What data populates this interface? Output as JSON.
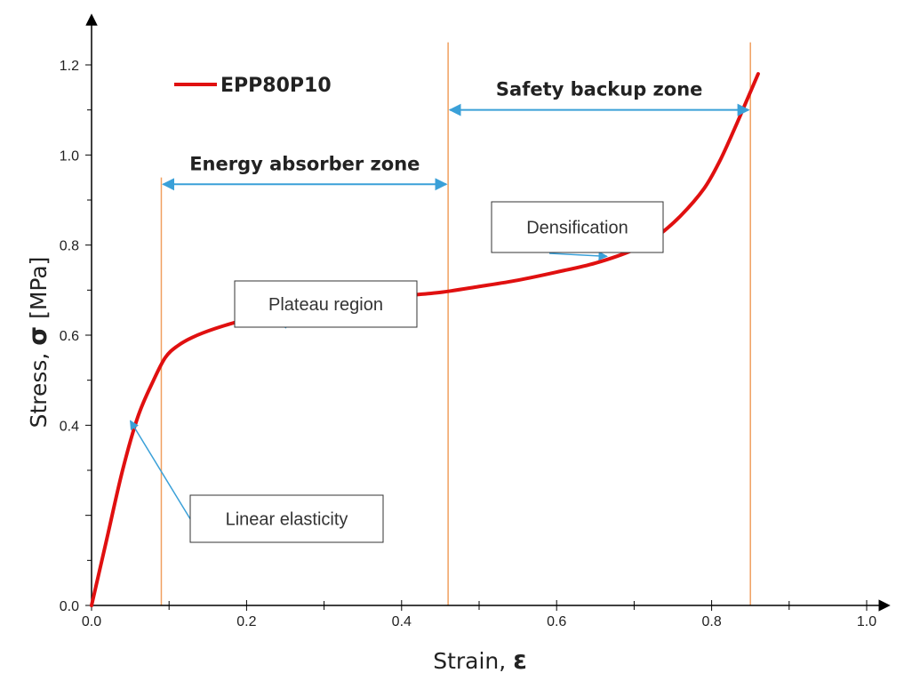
{
  "chart_data": {
    "type": "line",
    "title": "",
    "xlabel": "Strain,",
    "xlabel_symbol": "ε",
    "ylabel": "Stress,",
    "ylabel_symbol": "σ",
    "ylabel_unit": " [MPa]",
    "xlim": [
      0.0,
      1.0
    ],
    "ylim": [
      0.0,
      1.2
    ],
    "x_ticks": [
      "0.0",
      "0.2",
      "0.4",
      "0.6",
      "0.8",
      "1.0"
    ],
    "y_ticks": [
      "0.0",
      "0.4",
      "0.6",
      "0.8",
      "1.0",
      "1.2"
    ],
    "y_tick_values": [
      0.0,
      0.4,
      0.6,
      0.8,
      1.0,
      1.2
    ],
    "grid": false,
    "legend_position": "top-left",
    "series": [
      {
        "name": "EPP80P10",
        "color": "#e01010",
        "x": [
          0.0,
          0.02,
          0.04,
          0.06,
          0.08,
          0.095,
          0.11,
          0.13,
          0.16,
          0.2,
          0.25,
          0.3,
          0.35,
          0.4,
          0.45,
          0.5,
          0.55,
          0.6,
          0.65,
          0.7,
          0.73,
          0.76,
          0.79,
          0.81,
          0.83,
          0.845,
          0.86
        ],
        "y": [
          0.0,
          0.15,
          0.3,
          0.42,
          0.5,
          0.55,
          0.575,
          0.595,
          0.615,
          0.635,
          0.652,
          0.665,
          0.677,
          0.687,
          0.695,
          0.708,
          0.722,
          0.74,
          0.76,
          0.79,
          0.82,
          0.865,
          0.925,
          0.985,
          1.06,
          1.12,
          1.18
        ]
      }
    ],
    "vertical_lines": [
      {
        "x": 0.09,
        "y_top": 0.95,
        "color": "#f0a060"
      },
      {
        "x": 0.46,
        "y_top": 1.25,
        "color": "#f0a060"
      },
      {
        "x": 0.85,
        "y_top": 1.25,
        "color": "#f0a060"
      }
    ],
    "zones": [
      {
        "label": "Energy absorber zone",
        "x_start": 0.09,
        "x_end": 0.46,
        "y": 0.935
      },
      {
        "label": "Safety backup zone",
        "x_start": 0.46,
        "x_end": 0.85,
        "y": 1.1
      }
    ],
    "annotations": [
      {
        "label": "Linear elasticity",
        "target_x": 0.05,
        "target_y": 0.41
      },
      {
        "label": "Plateau region",
        "target_x": 0.23,
        "target_y": 0.645
      },
      {
        "label": "Densification",
        "target_x": 0.665,
        "target_y": 0.775
      }
    ],
    "arrow_color": "#3aa0d8"
  }
}
